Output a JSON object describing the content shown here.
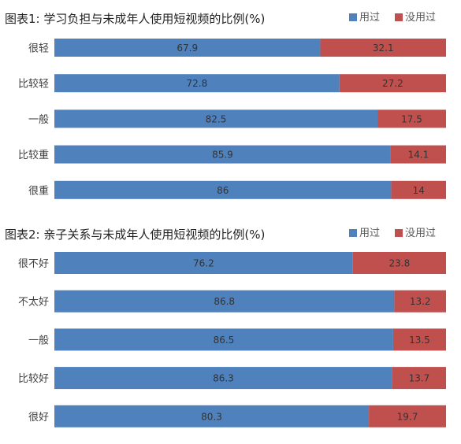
{
  "colors": {
    "used": "#4f81bd",
    "not_used": "#c0504d",
    "label": "#404040",
    "title": "#222222"
  },
  "chart_data": [
    {
      "type": "bar",
      "orientation": "horizontal",
      "stacked": true,
      "title": "图表1: 学习负担与未成年人使用短视频的比例(%)",
      "categories": [
        "很轻",
        "比较轻",
        "一般",
        "比较重",
        "很重"
      ],
      "series": [
        {
          "name": "用过",
          "values": [
            67.9,
            72.8,
            82.5,
            85.9,
            86
          ]
        },
        {
          "name": "没用过",
          "values": [
            32.1,
            27.2,
            17.5,
            14.1,
            14
          ]
        }
      ],
      "xlim": [
        0,
        100
      ],
      "grid": false,
      "legend": "top-right"
    },
    {
      "type": "bar",
      "orientation": "horizontal",
      "stacked": true,
      "title": "图表2: 亲子关系与未成年人使用短视频的比例(%)",
      "categories": [
        "很不好",
        "不太好",
        "一般",
        "比较好",
        "很好"
      ],
      "series": [
        {
          "name": "用过",
          "values": [
            76.2,
            86.8,
            86.5,
            86.3,
            80.3
          ]
        },
        {
          "name": "没用过",
          "values": [
            23.8,
            13.2,
            13.5,
            13.7,
            19.7
          ]
        }
      ],
      "xlim": [
        0,
        100
      ],
      "grid": false,
      "legend": "top-right"
    }
  ]
}
